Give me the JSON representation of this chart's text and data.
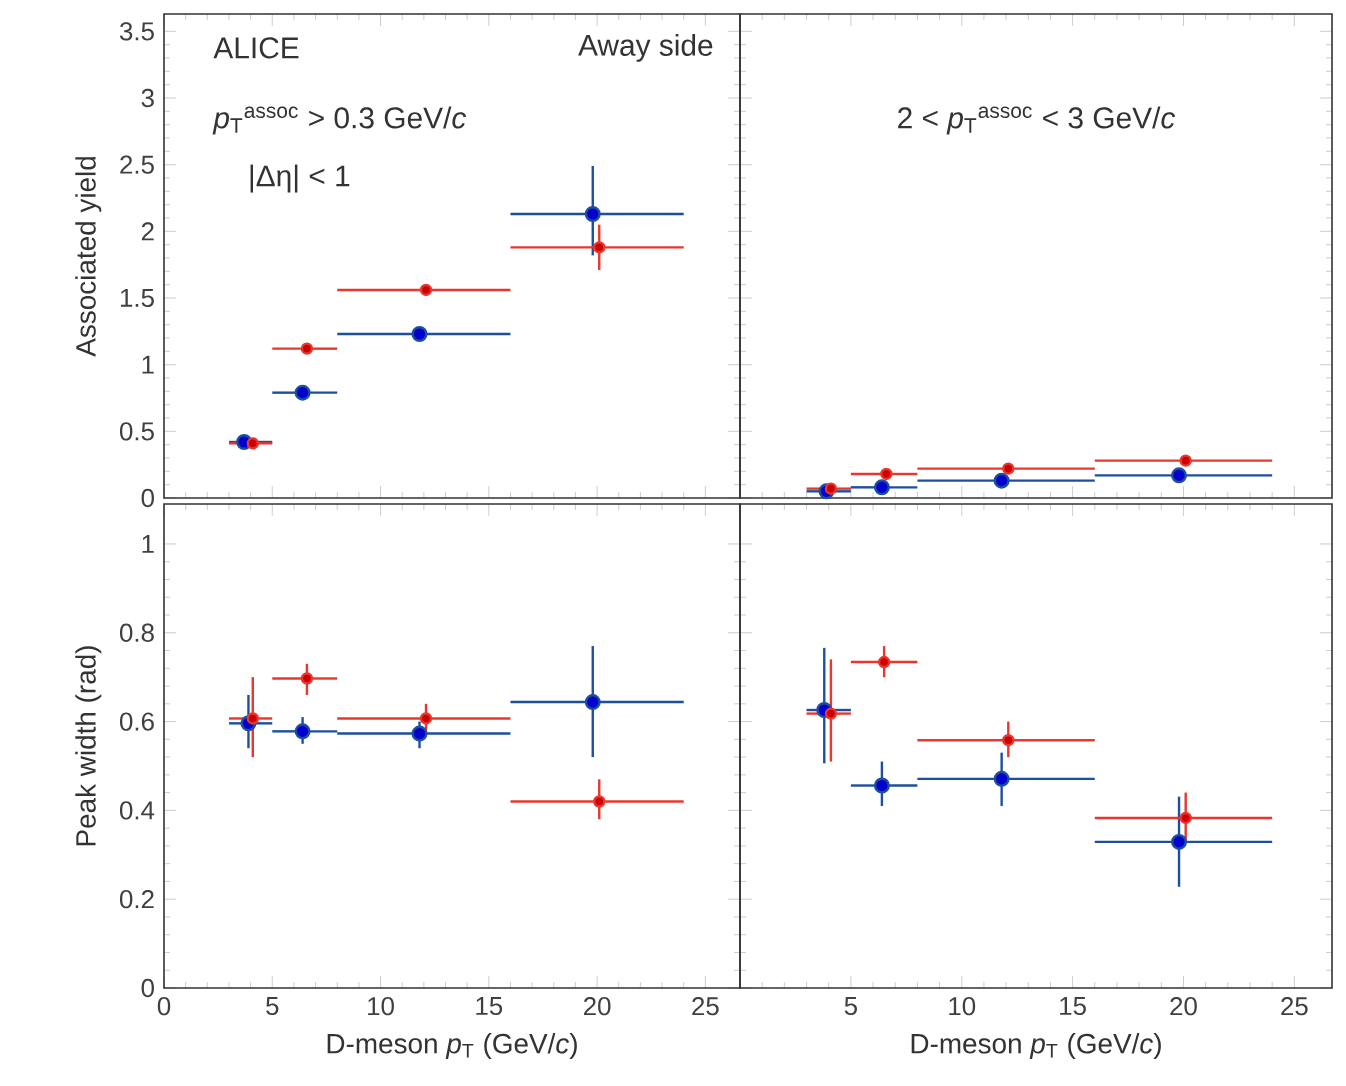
{
  "chart_data": [
    {
      "type": "scatter",
      "ylabel": "Associated yield",
      "annotations": [
        "ALICE",
        "Away side",
        "*p*$_{T}$$^{assoc}$ > 0.3 GeV/*c*",
        "|Δη| < 1"
      ],
      "xlim": [
        0,
        26.6
      ],
      "ylim": [
        0,
        3.63
      ],
      "xticks": [
        0,
        5,
        10,
        15,
        20,
        25
      ],
      "yticks": [
        0,
        0.5,
        1,
        1.5,
        2,
        2.5,
        3,
        3.5
      ],
      "tick_labels": "y",
      "marker": "circle",
      "grid": false,
      "series": [
        {
          "color": "#1c4fa0",
          "x": [
            3.7,
            6.4,
            11.8,
            19.8
          ],
          "values": [
            0.42,
            0.79,
            1.23,
            2.13
          ],
          "xerrors": [
            [
              3,
              5
            ],
            [
              5,
              8
            ],
            [
              8,
              16
            ],
            [
              16,
              24
            ]
          ],
          "errors": [
            null,
            null,
            null,
            [
              1.82,
              2.49
            ]
          ]
        },
        {
          "color": "#e8372c",
          "x": [
            4.1,
            6.6,
            12.1,
            20.1
          ],
          "values": [
            0.41,
            1.12,
            1.56,
            1.88
          ],
          "xerrors": [
            [
              3,
              5
            ],
            [
              5,
              8
            ],
            [
              8,
              16
            ],
            [
              16,
              24
            ]
          ],
          "errors": [
            null,
            null,
            null,
            [
              1.71,
              2.05
            ]
          ]
        }
      ]
    },
    {
      "type": "scatter",
      "annotations": [
        "2 < *p*$_{T}$$^{assoc}$ < 3 GeV/*c*"
      ],
      "xlim": [
        0,
        26.7
      ],
      "ylim": [
        0,
        3.63
      ],
      "xticks": [
        {
          "value": 0,
          "label": null
        },
        5,
        10,
        15,
        20,
        25
      ],
      "yticks": [
        0,
        0.5,
        1,
        1.5,
        2,
        2.5,
        3,
        3.5
      ],
      "tick_labels": false,
      "marker": "circle",
      "grid": false,
      "series": [
        {
          "color": "#1c4fa0",
          "x": [
            3.9,
            6.4,
            11.8,
            19.8
          ],
          "values": [
            0.05,
            0.08,
            0.13,
            0.17
          ],
          "xerrors": [
            [
              3,
              5
            ],
            [
              5,
              8
            ],
            [
              8,
              16
            ],
            [
              16,
              24
            ]
          ]
        },
        {
          "color": "#e8372c",
          "x": [
            4.1,
            6.6,
            12.1,
            20.1
          ],
          "values": [
            0.07,
            0.18,
            0.22,
            0.28
          ],
          "xerrors": [
            [
              3,
              5
            ],
            [
              5,
              8
            ],
            [
              8,
              16
            ],
            [
              16,
              24
            ]
          ]
        }
      ]
    },
    {
      "type": "scatter",
      "xlabel": "D-meson *p*$_{T}$ (GeV/*c*)",
      "ylabel": "Peak width (rad)",
      "xlim": [
        0,
        26.6
      ],
      "ylim": [
        0,
        1.09
      ],
      "xticks": [
        0,
        5,
        10,
        15,
        20,
        25
      ],
      "yticks": [
        0,
        0.2,
        0.4,
        0.6,
        0.8,
        1
      ],
      "marker": "circle",
      "grid": false,
      "series": [
        {
          "color": "#1c4fa0",
          "x": [
            3.9,
            6.4,
            11.8,
            19.8
          ],
          "values": [
            0.596,
            0.578,
            0.573,
            0.644
          ],
          "xerrors": [
            [
              3,
              5
            ],
            [
              5,
              8
            ],
            [
              8,
              16
            ],
            [
              16,
              24
            ]
          ],
          "errors": [
            [
              0.54,
              0.66
            ],
            [
              0.55,
              0.61
            ],
            [
              0.54,
              0.6
            ],
            [
              0.52,
              0.77
            ]
          ]
        },
        {
          "color": "#e8372c",
          "x": [
            4.1,
            6.6,
            12.1,
            20.1
          ],
          "values": [
            0.607,
            0.697,
            0.607,
            0.42
          ],
          "xerrors": [
            [
              3,
              5
            ],
            [
              5,
              8
            ],
            [
              8,
              16
            ],
            [
              16,
              24
            ]
          ],
          "errors": [
            [
              0.52,
              0.7
            ],
            [
              0.66,
              0.73
            ],
            [
              0.58,
              0.64
            ],
            [
              0.38,
              0.47
            ]
          ]
        }
      ]
    },
    {
      "type": "scatter",
      "xlabel": "D-meson *p*$_{T}$ (GeV/*c*)",
      "xlim": [
        0,
        26.7
      ],
      "ylim": [
        0,
        1.09
      ],
      "xticks": [
        {
          "value": 0,
          "label": null
        },
        5,
        10,
        15,
        20,
        25
      ],
      "yticks": [
        0,
        0.2,
        0.4,
        0.6,
        0.8,
        1
      ],
      "tick_labels": "x",
      "marker": "circle",
      "grid": false,
      "series": [
        {
          "color": "#1c4fa0",
          "x": [
            3.8,
            6.4,
            11.8,
            19.8
          ],
          "values": [
            0.626,
            0.456,
            0.471,
            0.329
          ],
          "xerrors": [
            [
              3,
              5
            ],
            [
              5,
              8
            ],
            [
              8,
              16
            ],
            [
              16,
              24
            ]
          ],
          "errors": [
            [
              0.506,
              0.766
            ],
            [
              0.41,
              0.51
            ],
            [
              0.41,
              0.53
            ],
            [
              0.228,
              0.431
            ]
          ]
        },
        {
          "color": "#e8372c",
          "x": [
            4.1,
            6.5,
            12.1,
            20.1
          ],
          "values": [
            0.618,
            0.734,
            0.558,
            0.383
          ],
          "xerrors": [
            [
              3,
              5
            ],
            [
              5,
              8
            ],
            [
              8,
              16
            ],
            [
              16,
              24
            ]
          ],
          "errors": [
            [
              0.51,
              0.74
            ],
            [
              0.7,
              0.77
            ],
            [
              0.52,
              0.6
            ],
            [
              0.33,
              0.44
            ]
          ]
        }
      ]
    }
  ]
}
